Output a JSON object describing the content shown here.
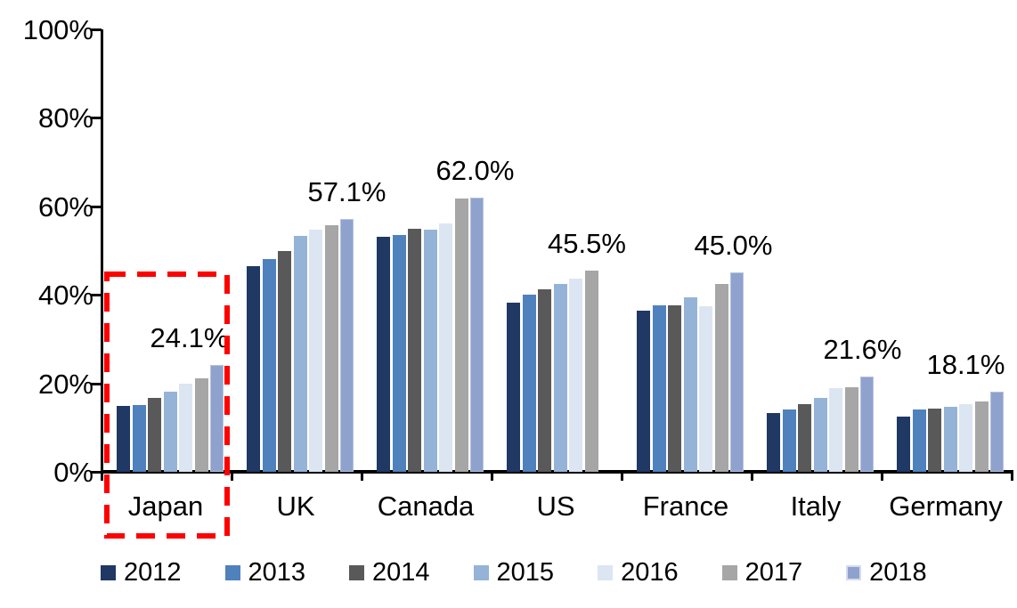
{
  "chart_data": {
    "type": "bar",
    "title": "",
    "categories": [
      "Japan",
      "UK",
      "Canada",
      "US",
      "France",
      "Italy",
      "Germany"
    ],
    "series": [
      {
        "name": "2012",
        "color": "#1F3864",
        "values": [
          14.9,
          46.4,
          53.1,
          38.3,
          36.5,
          13.3,
          12.5
        ]
      },
      {
        "name": "2013",
        "color": "#4F81BD",
        "values": [
          15.0,
          48.0,
          53.5,
          40.1,
          37.7,
          14.1,
          14.0
        ]
      },
      {
        "name": "2014",
        "color": "#595959",
        "values": [
          16.6,
          50.0,
          54.9,
          41.3,
          37.7,
          15.3,
          14.3
        ]
      },
      {
        "name": "2015",
        "color": "#95B3D7",
        "values": [
          18.2,
          53.4,
          54.8,
          42.4,
          39.4,
          16.8,
          14.7
        ]
      },
      {
        "name": "2016",
        "color": "#DCE6F2",
        "values": [
          20.0,
          54.8,
          56.2,
          43.7,
          37.4,
          19.0,
          15.3
        ]
      },
      {
        "name": "2017",
        "color": "#A6A6A6",
        "values": [
          21.1,
          55.8,
          61.7,
          45.5,
          42.4,
          19.1,
          15.8
        ]
      },
      {
        "name": "2018",
        "color": "#8FA2CE",
        "values": [
          24.1,
          57.1,
          62.0,
          null,
          45.0,
          21.6,
          18.1
        ]
      }
    ],
    "callout_labels": [
      "24.1%",
      "57.1%",
      "62.0%",
      "45.5%",
      "45.0%",
      "21.6%",
      "18.1%"
    ],
    "y_axis": {
      "min": 0,
      "max": 100,
      "step": 20,
      "tick_labels": [
        "100%",
        "80%",
        "60%",
        "40%",
        "20%",
        "0%"
      ]
    },
    "legend": [
      "2012",
      "2013",
      "2014",
      "2015",
      "2016",
      "2017",
      "2018"
    ],
    "legend_position": "bottom",
    "grid": false,
    "highlight": {
      "category": "Japan",
      "style": "dashed-box",
      "color": "#FF0000"
    }
  }
}
